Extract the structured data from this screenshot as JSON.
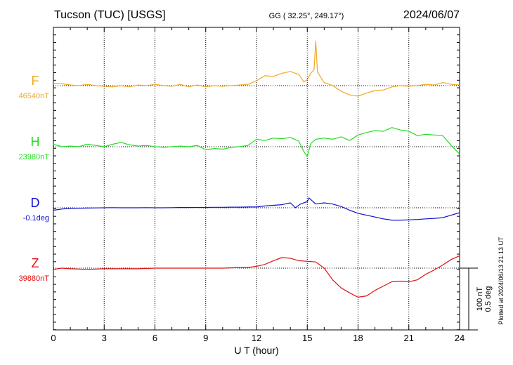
{
  "chart_data": {
    "type": "line",
    "title_left": "Tucson (TUC)  [USGS]",
    "title_center": "GG ( 32.25°, 249.17°)",
    "title_right": "2024/06/07",
    "xlabel": "U T (hour)",
    "xlim": [
      0,
      24
    ],
    "x_ticks": [
      "0",
      "3",
      "6",
      "9",
      "12",
      "15",
      "18",
      "21",
      "24"
    ],
    "grid": true,
    "scale_bar": [
      "100 nT",
      "0.5 deg"
    ],
    "plotted_note": "Plotted at 2024/06/13 21:13 UT",
    "series": [
      {
        "name": "F",
        "baseline_label": "46540nT",
        "color": "#f0a820",
        "baseline_nT": 46540,
        "x": [
          0,
          0.5,
          1,
          1.5,
          2,
          2.5,
          3,
          3.5,
          4,
          4.5,
          5,
          5.5,
          6,
          6.5,
          7,
          7.5,
          8,
          8.5,
          9,
          9.5,
          10,
          10.5,
          11,
          11.5,
          12,
          12.5,
          13,
          13.5,
          14,
          14.5,
          14.8,
          15,
          15.2,
          15.4,
          15.5,
          15.6,
          16,
          16.5,
          17,
          17.5,
          18,
          18.5,
          19,
          19.5,
          20,
          20.5,
          21,
          21.5,
          22,
          22.5,
          23,
          23.5,
          24
        ],
        "values": [
          46544,
          46543,
          46541,
          46540,
          46542,
          46540,
          46539,
          46538,
          46540,
          46538,
          46541,
          46540,
          46542,
          46540,
          46539,
          46542,
          46538,
          46541,
          46538,
          46540,
          46539,
          46540,
          46541,
          46542,
          46548,
          46556,
          46555,
          46560,
          46563,
          46558,
          46546,
          46550,
          46560,
          46566,
          46612,
          46562,
          46545,
          46540,
          46531,
          46525,
          46523,
          46528,
          46532,
          46533,
          46538,
          46540,
          46539,
          46540,
          46542,
          46541,
          46545,
          46542,
          46541
        ]
      },
      {
        "name": "H",
        "baseline_label": "23980nT",
        "color": "#22dd22",
        "baseline_nT": 23980,
        "x": [
          0,
          0.5,
          1,
          1.5,
          2,
          2.5,
          3,
          3.5,
          4,
          4.5,
          5,
          5.5,
          6,
          6.5,
          7,
          7.5,
          8,
          8.5,
          9,
          9.5,
          10,
          10.5,
          11,
          11.5,
          12,
          12.5,
          13,
          13.5,
          14,
          14.5,
          14.8,
          15,
          15.2,
          15.5,
          16,
          16.5,
          17,
          17.5,
          18,
          18.5,
          19,
          19.5,
          20,
          20.5,
          21,
          21.5,
          22,
          22.5,
          23,
          23.5,
          24
        ],
        "values": [
          23984,
          23980,
          23981,
          23980,
          23984,
          23982,
          23980,
          23984,
          23987,
          23983,
          23981,
          23982,
          23980,
          23979,
          23980,
          23981,
          23980,
          23982,
          23975,
          23977,
          23976,
          23979,
          23980,
          23982,
          23992,
          23990,
          23994,
          23993,
          23995,
          23989,
          23972,
          23964,
          23985,
          23992,
          23994,
          23992,
          23996,
          23990,
          23999,
          24003,
          24006,
          24005,
          24011,
          24007,
          24005,
          23998,
          24000,
          23999,
          23998,
          23982,
          23968
        ]
      },
      {
        "name": "D",
        "baseline_label": "-0.1deg",
        "color": "#1010cc",
        "baseline_deg": -0.1,
        "x": [
          0,
          0.5,
          1,
          1.5,
          2,
          2.5,
          3,
          3.5,
          4,
          4.5,
          5,
          5.5,
          6,
          6.5,
          7,
          7.5,
          8,
          8.5,
          9,
          9.5,
          10,
          10.5,
          11,
          11.5,
          12,
          12.5,
          13,
          13.5,
          14,
          14.3,
          14.6,
          15,
          15.1,
          15.5,
          16,
          16.5,
          17,
          17.5,
          18,
          18.5,
          19,
          19.5,
          20,
          20.5,
          21,
          21.5,
          22,
          22.5,
          23,
          23.5,
          24
        ],
        "values": [
          -0.12,
          -0.11,
          -0.105,
          -0.104,
          -0.102,
          -0.101,
          -0.1,
          -0.099,
          -0.1,
          -0.1,
          -0.1,
          -0.099,
          -0.1,
          -0.1,
          -0.099,
          -0.098,
          -0.098,
          -0.097,
          -0.097,
          -0.096,
          -0.096,
          -0.095,
          -0.095,
          -0.094,
          -0.094,
          -0.085,
          -0.08,
          -0.075,
          -0.06,
          -0.1,
          -0.07,
          -0.05,
          -0.02,
          -0.07,
          -0.06,
          -0.07,
          -0.09,
          -0.12,
          -0.145,
          -0.16,
          -0.175,
          -0.19,
          -0.2,
          -0.2,
          -0.198,
          -0.195,
          -0.19,
          -0.186,
          -0.18,
          -0.16,
          -0.14
        ]
      },
      {
        "name": "Z",
        "baseline_label": "39880nT",
        "color": "#dd1111",
        "baseline_nT": 39880,
        "x": [
          0,
          0.5,
          1,
          2,
          3,
          4,
          5,
          6,
          7,
          8,
          9,
          10,
          11,
          11.5,
          12,
          12.5,
          13,
          13.5,
          14,
          14.5,
          15,
          15.5,
          16,
          16.5,
          17,
          17.5,
          18,
          18.5,
          19,
          19.5,
          20,
          20.5,
          21,
          21.5,
          22,
          22.5,
          23,
          23.5,
          24
        ],
        "values": [
          39878,
          39880,
          39879,
          39878,
          39879,
          39879,
          39879,
          39880,
          39880,
          39880,
          39880,
          39880,
          39881,
          39881,
          39883,
          39886,
          39892,
          39897,
          39896,
          39892,
          39891,
          39890,
          39880,
          39861,
          39848,
          39840,
          39833,
          39835,
          39844,
          39851,
          39858,
          39859,
          39858,
          39861,
          39870,
          39877,
          39885,
          39894,
          39900
        ]
      }
    ]
  }
}
